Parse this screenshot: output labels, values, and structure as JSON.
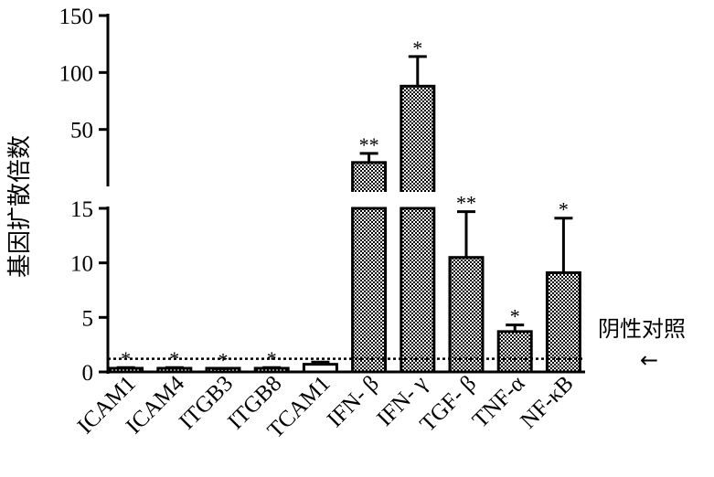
{
  "chart_data": {
    "type": "bar",
    "ylabel": "基因扩散倍数",
    "categories": [
      "ICAM1",
      "ICAM4",
      "ITGB3",
      "ITGB8",
      "TCAM1",
      "IFN- β",
      "IFN- γ",
      "TGF- β",
      "TNF-α",
      "NF-κB"
    ],
    "values": [
      0.2,
      0.2,
      0.2,
      0.2,
      0.7,
      21,
      88,
      10.5,
      3.7,
      9.1
    ],
    "errors": [
      0.2,
      0.2,
      0.1,
      0.2,
      0.2,
      8,
      26,
      4.2,
      0.6,
      5.0
    ],
    "significance": [
      "*",
      "*",
      "*",
      "*",
      "",
      "**",
      "*",
      "**",
      "*",
      "*"
    ],
    "patterns": [
      "checker",
      "checker",
      "checker",
      "checker",
      "white",
      "checker",
      "checker",
      "checker",
      "checker",
      "checker"
    ],
    "broken_axis": {
      "lower_range": [
        0,
        15
      ],
      "lower_ticks": [
        "0",
        "5",
        "10",
        "15"
      ],
      "upper_range": [
        0,
        150
      ],
      "upper_ticks": [
        "50",
        "100",
        "150"
      ]
    },
    "reference_line": {
      "value": 1.2,
      "label": "阴性对照",
      "style": "dotted"
    },
    "legend_arrow": "←",
    "grid": false,
    "colors": {
      "bar_pattern_dark": "#000000",
      "bar_pattern_light": "#ffffff",
      "axis": "#000000"
    }
  }
}
